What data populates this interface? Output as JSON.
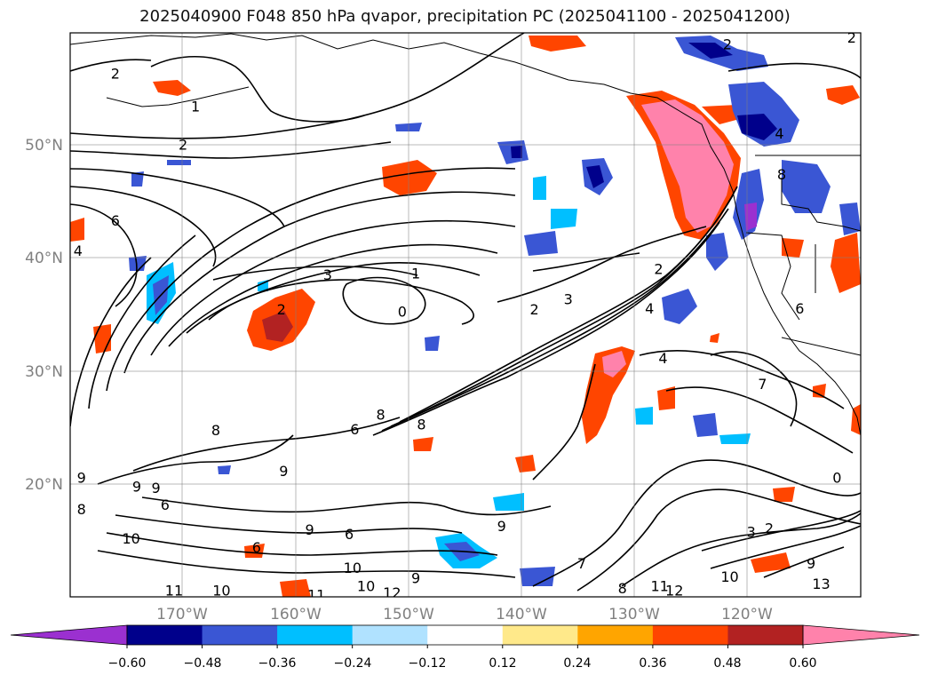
{
  "figure": {
    "title": "2025040900 F048 850 hPa qvapor, precipitation PC (2025041100 - 2025041200)"
  },
  "map": {
    "lat_ticks": [
      "50°N",
      "40°N",
      "30°N",
      "20°N"
    ],
    "lon_ticks": [
      "170°W",
      "160°W",
      "150°W",
      "140°W",
      "130°W",
      "120°W"
    ],
    "grid": true,
    "extent": {
      "lon_min": -180,
      "lon_max": -110,
      "lat_min": 10,
      "lat_max": 60
    }
  },
  "colorbar": {
    "ticks": [
      "−0.60",
      "−0.48",
      "−0.36",
      "−0.24",
      "−0.12",
      "0.12",
      "0.24",
      "0.36",
      "0.48",
      "0.60"
    ],
    "colors": [
      "#9b30d0",
      "#00008b",
      "#3a56d4",
      "#00bfff",
      "#b0e2ff",
      "#ffffff",
      "#ffe98a",
      "#ffa500",
      "#ff4500",
      "#b22222",
      "#ff82ab"
    ],
    "extend": "both"
  },
  "contours": {
    "labels": [
      {
        "text": "2",
        "lon": -176.0,
        "lat": 56.4
      },
      {
        "text": "1",
        "lon": -168.9,
        "lat": 53.5
      },
      {
        "text": "2",
        "lon": -170.0,
        "lat": 50.1
      },
      {
        "text": "3",
        "lon": -157.2,
        "lat": 38.6
      },
      {
        "text": "1",
        "lon": -149.4,
        "lat": 38.7
      },
      {
        "text": "2",
        "lon": -161.3,
        "lat": 35.5
      },
      {
        "text": "0",
        "lon": -150.6,
        "lat": 35.3
      },
      {
        "text": "2",
        "lon": -138.9,
        "lat": 35.5
      },
      {
        "text": "3",
        "lon": -135.9,
        "lat": 36.4
      },
      {
        "text": "2",
        "lon": -127.9,
        "lat": 39.1
      },
      {
        "text": "4",
        "lon": -117.2,
        "lat": 51.1
      },
      {
        "text": "8",
        "lon": -117.0,
        "lat": 47.5
      },
      {
        "text": "6",
        "lon": -176.0,
        "lat": 43.4
      },
      {
        "text": "4",
        "lon": -179.3,
        "lat": 40.7
      },
      {
        "text": "4",
        "lon": -128.7,
        "lat": 35.6
      },
      {
        "text": "4",
        "lon": -127.5,
        "lat": 31.2
      },
      {
        "text": "6",
        "lon": -115.4,
        "lat": 35.6
      },
      {
        "text": "8",
        "lon": -152.5,
        "lat": 26.2
      },
      {
        "text": "8",
        "lon": -148.9,
        "lat": 25.3
      },
      {
        "text": "6",
        "lon": -154.8,
        "lat": 24.9
      },
      {
        "text": "8",
        "lon": -167.1,
        "lat": 24.8
      },
      {
        "text": "9",
        "lon": -161.1,
        "lat": 21.2
      },
      {
        "text": "9",
        "lon": -179.0,
        "lat": 20.6
      },
      {
        "text": "9",
        "lon": -174.1,
        "lat": 19.8
      },
      {
        "text": "9",
        "lon": -172.4,
        "lat": 19.7
      },
      {
        "text": "6",
        "lon": -171.6,
        "lat": 18.2
      },
      {
        "text": "8",
        "lon": -179.0,
        "lat": 17.8
      },
      {
        "text": "10",
        "lon": -174.6,
        "lat": 15.2
      },
      {
        "text": "6",
        "lon": -163.5,
        "lat": 14.4
      },
      {
        "text": "9",
        "lon": -158.8,
        "lat": 16.0
      },
      {
        "text": "6",
        "lon": -155.3,
        "lat": 15.6
      },
      {
        "text": "9",
        "lon": -141.8,
        "lat": 16.3
      },
      {
        "text": "7",
        "lon": -134.7,
        "lat": 13.0
      },
      {
        "text": "10",
        "lon": -155.0,
        "lat": 12.6
      },
      {
        "text": "9",
        "lon": -149.4,
        "lat": 11.7
      },
      {
        "text": "10",
        "lon": -153.8,
        "lat": 11.0
      },
      {
        "text": "12",
        "lon": -151.5,
        "lat": 10.4
      },
      {
        "text": "11",
        "lon": -170.8,
        "lat": 10.6
      },
      {
        "text": "10",
        "lon": -166.6,
        "lat": 10.6
      },
      {
        "text": "11",
        "lon": -158.2,
        "lat": 10.2
      },
      {
        "text": "8",
        "lon": -131.1,
        "lat": 10.8
      },
      {
        "text": "11",
        "lon": -127.8,
        "lat": 11.0
      },
      {
        "text": "12",
        "lon": -126.5,
        "lat": 10.6
      },
      {
        "text": "10",
        "lon": -121.6,
        "lat": 11.8
      },
      {
        "text": "3",
        "lon": -119.7,
        "lat": 15.8
      },
      {
        "text": "2",
        "lon": -118.1,
        "lat": 16.1
      },
      {
        "text": "9",
        "lon": -114.4,
        "lat": 13.0
      },
      {
        "text": "13",
        "lon": -113.5,
        "lat": 11.2
      },
      {
        "text": "0",
        "lon": -112.1,
        "lat": 20.6
      },
      {
        "text": "7",
        "lon": -118.7,
        "lat": 28.9
      },
      {
        "text": "2",
        "lon": -121.8,
        "lat": 59.0
      },
      {
        "text": "2",
        "lon": -110.8,
        "lat": 59.6
      }
    ]
  }
}
